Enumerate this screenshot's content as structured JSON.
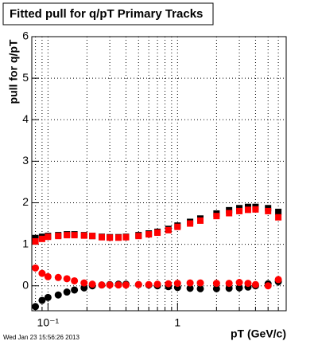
{
  "chart_data": {
    "type": "scatter",
    "title": "Fitted pull for q/pT  Primary Tracks",
    "x_label": "pT (GeV/c)",
    "y_label": "pull for q/pT",
    "footer": "Wed Jan 23 15:56:26 2013",
    "log_x": true,
    "grid": true,
    "xlim": [
      0.075,
      6.9
    ],
    "ylim": [
      -0.6,
      6
    ],
    "xticks": [
      {
        "value": 0.1,
        "label": "10⁻¹"
      },
      1
    ],
    "xgrid": [
      0.08,
      0.09,
      0.2,
      0.3,
      0.4,
      0.5,
      0.6,
      0.7,
      0.8,
      0.9,
      2,
      3,
      4,
      5,
      6
    ],
    "yticks": [
      0,
      1,
      2,
      3,
      4,
      5,
      6
    ],
    "x": [
      0.08,
      0.09,
      0.1,
      0.12,
      0.14,
      0.16,
      0.19,
      0.22,
      0.26,
      0.3,
      0.35,
      0.4,
      0.5,
      0.6,
      0.7,
      0.85,
      1,
      1.25,
      1.5,
      2,
      2.5,
      3,
      3.5,
      4,
      5,
      6
    ],
    "series": [
      {
        "color": "#000000",
        "marker": "square",
        "values": [
          1.15,
          1.18,
          1.2,
          1.22,
          1.24,
          1.24,
          1.22,
          1.2,
          1.18,
          1.17,
          1.17,
          1.18,
          1.22,
          1.26,
          1.3,
          1.37,
          1.45,
          1.54,
          1.62,
          1.74,
          1.82,
          1.87,
          1.9,
          1.9,
          1.87,
          1.78
        ]
      },
      {
        "color": "#000000",
        "marker": "circle",
        "values": [
          -0.5,
          -0.35,
          -0.28,
          -0.22,
          -0.15,
          -0.1,
          -0.05,
          0,
          0.02,
          0.03,
          0.04,
          0.04,
          0.03,
          0.02,
          0,
          -0.02,
          -0.04,
          -0.06,
          -0.07,
          -0.07,
          -0.06,
          -0.05,
          -0.03,
          0,
          0.05,
          0.1
        ]
      },
      {
        "color": "#ff0000",
        "marker": "square",
        "values": [
          1.07,
          1.13,
          1.18,
          1.2,
          1.22,
          1.22,
          1.21,
          1.2,
          1.17,
          1.16,
          1.16,
          1.17,
          1.2,
          1.24,
          1.28,
          1.34,
          1.42,
          1.5,
          1.57,
          1.68,
          1.75,
          1.8,
          1.83,
          1.84,
          1.8,
          1.65
        ]
      },
      {
        "color": "#ff0000",
        "marker": "circle",
        "values": [
          0.43,
          0.3,
          0.22,
          0.2,
          0.17,
          0.12,
          0.07,
          0.04,
          0.02,
          0.02,
          0.02,
          0.02,
          0.03,
          0.03,
          0.04,
          0.05,
          0.06,
          0.07,
          0.07,
          0.06,
          0.06,
          0.08,
          0.06,
          0.03,
          0,
          0.15
        ]
      }
    ]
  }
}
